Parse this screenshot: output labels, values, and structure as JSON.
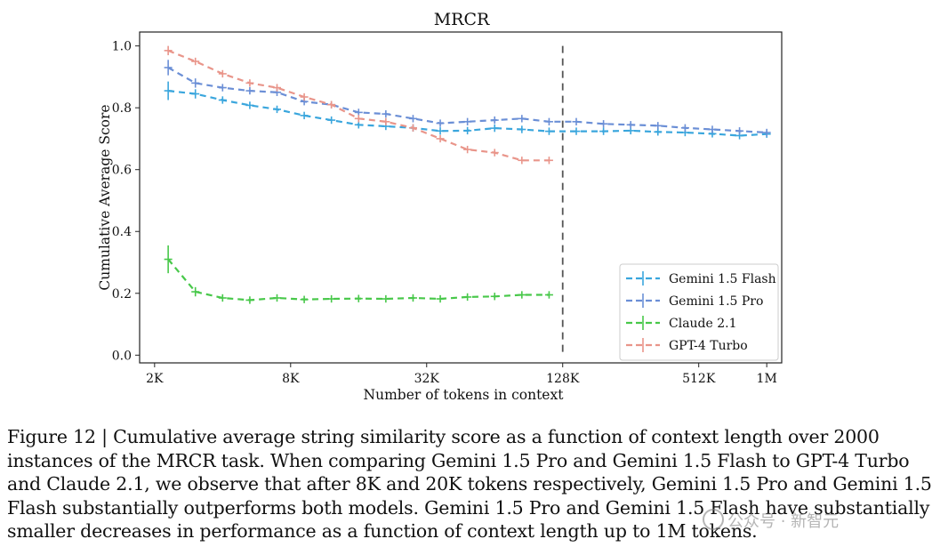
{
  "chart_data": {
    "type": "line",
    "title": "MRCR",
    "xlabel": "Number of tokens in context",
    "ylabel": "Cumulative Average Score",
    "xscale": "log2",
    "xlim_log2": [
      10.78,
      20.22
    ],
    "ylim": [
      -0.025,
      1.045
    ],
    "xticks": [
      {
        "label": "2K",
        "log2": 11
      },
      {
        "label": "8K",
        "log2": 13
      },
      {
        "label": "32K",
        "log2": 15
      },
      {
        "label": "128K",
        "log2": 17
      },
      {
        "label": "512K",
        "log2": 19
      },
      {
        "label": "1M",
        "log2": 20
      }
    ],
    "yticks": [
      0.0,
      0.2,
      0.4,
      0.6,
      0.8,
      1.0
    ],
    "vline_log2": 17,
    "legend_position": "lower-right",
    "series": [
      {
        "name": "Gemini 1.5 Flash",
        "color": "#3aa6dd",
        "x_log2": [
          11.2,
          11.6,
          12.0,
          12.4,
          12.8,
          13.2,
          13.6,
          14.0,
          14.4,
          14.8,
          15.2,
          15.6,
          16.0,
          16.4,
          16.8,
          17.2,
          17.6,
          18.0,
          18.4,
          18.8,
          19.2,
          19.6,
          20.0
        ],
        "y": [
          0.855,
          0.845,
          0.825,
          0.808,
          0.795,
          0.775,
          0.76,
          0.745,
          0.74,
          0.735,
          0.725,
          0.726,
          0.734,
          0.73,
          0.724,
          0.724,
          0.724,
          0.726,
          0.722,
          0.72,
          0.716,
          0.71,
          0.715
        ],
        "err": [
          0.03,
          0.015,
          0.01,
          0.01,
          0.008,
          0.008,
          0.008,
          0.008,
          0.006,
          0.006,
          0.006,
          0.006,
          0.006,
          0.006,
          0.006,
          0.006,
          0.006,
          0.006,
          0.006,
          0.006,
          0.006,
          0.006,
          0.006
        ]
      },
      {
        "name": "Gemini 1.5 Pro",
        "color": "#6b8fd6",
        "x_log2": [
          11.2,
          11.6,
          12.0,
          12.4,
          12.8,
          13.2,
          13.6,
          14.0,
          14.4,
          14.8,
          15.2,
          15.6,
          16.0,
          16.4,
          16.8,
          17.2,
          17.6,
          18.0,
          18.4,
          18.8,
          19.2,
          19.6,
          20.0
        ],
        "y": [
          0.93,
          0.88,
          0.865,
          0.855,
          0.85,
          0.82,
          0.81,
          0.785,
          0.78,
          0.765,
          0.75,
          0.755,
          0.76,
          0.765,
          0.755,
          0.755,
          0.748,
          0.745,
          0.742,
          0.735,
          0.73,
          0.725,
          0.72
        ],
        "err": [
          0.025,
          0.015,
          0.01,
          0.01,
          0.01,
          0.008,
          0.008,
          0.008,
          0.008,
          0.007,
          0.007,
          0.007,
          0.007,
          0.007,
          0.007,
          0.007,
          0.007,
          0.007,
          0.007,
          0.007,
          0.007,
          0.007,
          0.007
        ]
      },
      {
        "name": "Claude 2.1",
        "color": "#48c84a",
        "x_log2": [
          11.2,
          11.6,
          12.0,
          12.4,
          12.8,
          13.2,
          13.6,
          14.0,
          14.4,
          14.8,
          15.2,
          15.6,
          16.0,
          16.4,
          16.8
        ],
        "y": [
          0.31,
          0.205,
          0.185,
          0.178,
          0.185,
          0.18,
          0.182,
          0.183,
          0.182,
          0.185,
          0.182,
          0.188,
          0.19,
          0.195,
          0.195
        ],
        "err": [
          0.045,
          0.015,
          0.01,
          0.01,
          0.008,
          0.008,
          0.008,
          0.008,
          0.008,
          0.008,
          0.008,
          0.008,
          0.008,
          0.008,
          0.008
        ]
      },
      {
        "name": "GPT-4 Turbo",
        "color": "#e9958a",
        "x_log2": [
          11.2,
          11.6,
          12.0,
          12.4,
          12.8,
          13.2,
          13.6,
          14.0,
          14.4,
          14.8,
          15.2,
          15.6,
          16.0,
          16.4,
          16.8
        ],
        "y": [
          0.985,
          0.95,
          0.91,
          0.88,
          0.865,
          0.835,
          0.81,
          0.765,
          0.755,
          0.735,
          0.7,
          0.665,
          0.655,
          0.63,
          0.63
        ],
        "err": [
          0.015,
          0.01,
          0.01,
          0.01,
          0.01,
          0.008,
          0.008,
          0.008,
          0.008,
          0.008,
          0.008,
          0.008,
          0.008,
          0.008,
          0.008
        ]
      }
    ]
  },
  "caption": {
    "lines": [
      "Figure 12 | Cumulative average string similarity score as a function of context length over 2000",
      "instances of the MRCR task. When comparing Gemini 1.5 Pro and Gemini 1.5 Flash to GPT-4 Turbo",
      "and Claude 2.1, we observe that after 8K and 20K tokens respectively, Gemini 1.5 Pro and Gemini 1.5",
      "Flash substantially outperforms both models. Gemini 1.5 Pro and Gemini 1.5 Flash have substantially",
      "smaller decreases in performance as a function of context length up to 1M tokens."
    ]
  },
  "watermark": {
    "text": "公众号 · 新智元"
  }
}
